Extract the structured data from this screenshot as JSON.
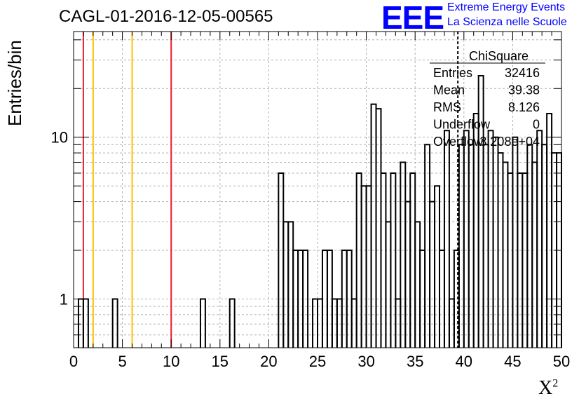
{
  "header": {
    "title": "CAGL-01-2016-12-05-00565",
    "logo_text": "EEE",
    "logo_line1": "Extreme Energy Events",
    "logo_line2": "La Scienza nelle Scuole"
  },
  "chart_data": {
    "type": "bar",
    "xlabel_base": "X",
    "xlabel_sup": "2",
    "ylabel": "Entries/bin",
    "xlim": [
      0,
      50
    ],
    "ylim": [
      0.5,
      45
    ],
    "y_log": true,
    "grid": true,
    "bin_width": 0.5,
    "x_ticks": [
      0,
      5,
      10,
      15,
      20,
      25,
      30,
      35,
      40,
      45,
      50
    ],
    "y_tick_labels": [
      {
        "value": 1,
        "label": "1"
      },
      {
        "value": 10,
        "label": "10"
      }
    ],
    "vertical_lines": [
      {
        "x": 1,
        "color": "#e8202a"
      },
      {
        "x": 2,
        "color": "#ffc000"
      },
      {
        "x": 6,
        "color": "#ffc000"
      },
      {
        "x": 10,
        "color": "#e8202a"
      }
    ],
    "dashed_line_x": 39.38,
    "bins": [
      {
        "x": 0.5,
        "y": 1
      },
      {
        "x": 1.0,
        "y": 1
      },
      {
        "x": 4.0,
        "y": 1
      },
      {
        "x": 13.0,
        "y": 1
      },
      {
        "x": 16.0,
        "y": 1
      },
      {
        "x": 21.0,
        "y": 6
      },
      {
        "x": 21.5,
        "y": 3
      },
      {
        "x": 22.0,
        "y": 3
      },
      {
        "x": 22.5,
        "y": 2
      },
      {
        "x": 23.0,
        "y": 2
      },
      {
        "x": 23.5,
        "y": 2
      },
      {
        "x": 24.5,
        "y": 1
      },
      {
        "x": 25.0,
        "y": 1
      },
      {
        "x": 25.5,
        "y": 2
      },
      {
        "x": 26.0,
        "y": 2
      },
      {
        "x": 26.5,
        "y": 1
      },
      {
        "x": 27.0,
        "y": 1
      },
      {
        "x": 27.5,
        "y": 2
      },
      {
        "x": 28.0,
        "y": 2
      },
      {
        "x": 28.5,
        "y": 1
      },
      {
        "x": 29.0,
        "y": 6
      },
      {
        "x": 29.5,
        "y": 5
      },
      {
        "x": 30.0,
        "y": 5
      },
      {
        "x": 30.5,
        "y": 16
      },
      {
        "x": 31.0,
        "y": 15
      },
      {
        "x": 31.5,
        "y": 6
      },
      {
        "x": 32.0,
        "y": 3
      },
      {
        "x": 32.5,
        "y": 6
      },
      {
        "x": 33.0,
        "y": 1
      },
      {
        "x": 33.5,
        "y": 7
      },
      {
        "x": 34.0,
        "y": 4
      },
      {
        "x": 34.5,
        "y": 6
      },
      {
        "x": 35.0,
        "y": 3
      },
      {
        "x": 35.5,
        "y": 2
      },
      {
        "x": 36.0,
        "y": 9
      },
      {
        "x": 36.5,
        "y": 4
      },
      {
        "x": 37.0,
        "y": 5
      },
      {
        "x": 37.5,
        "y": 2
      },
      {
        "x": 38.0,
        "y": 11
      },
      {
        "x": 38.5,
        "y": 1
      },
      {
        "x": 39.0,
        "y": 2
      },
      {
        "x": 39.5,
        "y": 9
      },
      {
        "x": 40.0,
        "y": 11
      },
      {
        "x": 40.5,
        "y": 9
      },
      {
        "x": 41.0,
        "y": 14
      },
      {
        "x": 41.5,
        "y": 24
      },
      {
        "x": 42.0,
        "y": 9
      },
      {
        "x": 42.5,
        "y": 11
      },
      {
        "x": 43.0,
        "y": 10
      },
      {
        "x": 43.5,
        "y": 8
      },
      {
        "x": 44.0,
        "y": 7
      },
      {
        "x": 44.5,
        "y": 6
      },
      {
        "x": 45.0,
        "y": 10
      },
      {
        "x": 45.5,
        "y": 6
      },
      {
        "x": 46.0,
        "y": 6
      },
      {
        "x": 46.5,
        "y": 9
      },
      {
        "x": 47.0,
        "y": 7
      },
      {
        "x": 47.5,
        "y": 11
      },
      {
        "x": 48.0,
        "y": 9
      },
      {
        "x": 48.5,
        "y": 14
      },
      {
        "x": 49.0,
        "y": 8
      },
      {
        "x": 49.5,
        "y": 8
      }
    ],
    "stats": {
      "title": "ChiSquare",
      "rows": [
        {
          "label": "Entries",
          "value": "32416"
        },
        {
          "label": "Mean",
          "value": "39.38"
        },
        {
          "label": "RMS",
          "value": "8.126"
        },
        {
          "label": "Underflow",
          "value": "0"
        },
        {
          "label": "Overflow",
          "value": "3.208e+04"
        }
      ]
    }
  }
}
